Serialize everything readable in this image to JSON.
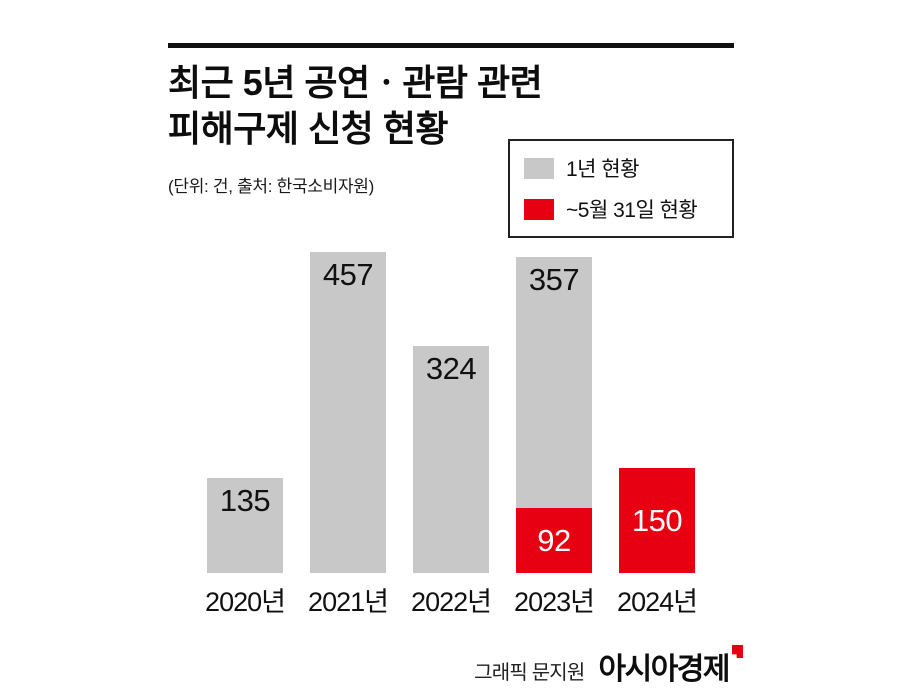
{
  "colors": {
    "gray": "#c8c8c8",
    "red": "#e60012",
    "text": "#111111"
  },
  "header": {
    "title_line1": "최근 5년 공연ㆍ관람 관련",
    "title_line2": "피해구제 신청 현황",
    "subtitle": "(단위: 건, 출처: 한국소비자원)"
  },
  "legend": {
    "items": [
      {
        "label": "1년 현황",
        "color": "#c8c8c8"
      },
      {
        "label": "~5월 31일 현황",
        "color": "#e60012"
      }
    ]
  },
  "footer": {
    "credit": "그래픽 문지원",
    "brand": "아시아경제"
  },
  "chart_data": {
    "type": "bar",
    "stacked": true,
    "title": "최근 5년 공연ㆍ관람 관련 피해구제 신청 현황",
    "unit_source_note": "(단위: 건, 출처: 한국소비자원)",
    "categories": [
      "2020년",
      "2021년",
      "2022년",
      "2023년",
      "2024년"
    ],
    "series": [
      {
        "name": "1년 현황",
        "color": "#c8c8c8",
        "label_color": "#111111",
        "label_pos": "top",
        "values": [
          135,
          457,
          324,
          357,
          null
        ]
      },
      {
        "name": "~5월 31일 현황",
        "color": "#e60012",
        "label_color": "#ffffff",
        "label_pos": "center",
        "values": [
          null,
          null,
          null,
          92,
          150
        ]
      }
    ],
    "ylim": [
      0,
      470
    ],
    "grid": false,
    "value_labels": true,
    "legend_position": "top-right"
  }
}
